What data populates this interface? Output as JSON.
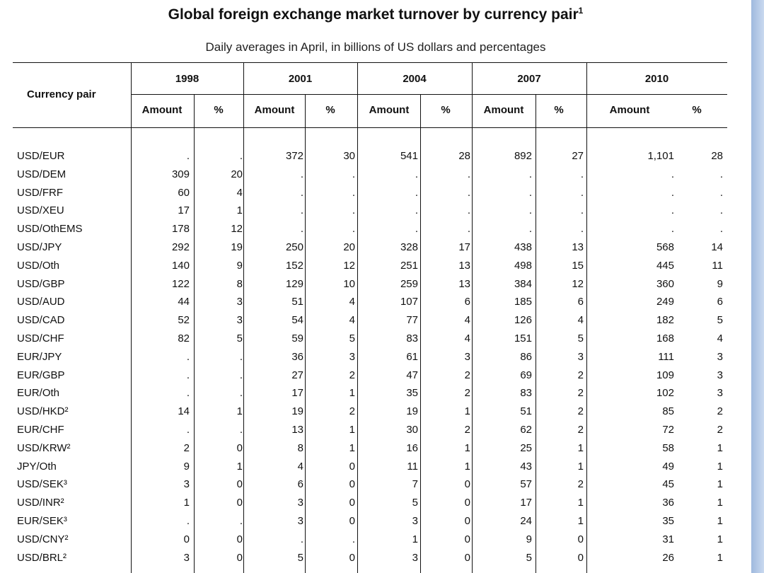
{
  "title": "Global foreign exchange market turnover by currency pair",
  "title_note": "1",
  "subtitle": "Daily averages in April, in billions of US dollars and percentages",
  "header": {
    "row_label": "Currency pair",
    "years": [
      "1998",
      "2001",
      "2004",
      "2007",
      "2010"
    ],
    "amount_label": "Amount",
    "pct_label": "%"
  },
  "rows": [
    {
      "pair": "USD/EUR",
      "v": [
        ".",
        ".",
        "372",
        "30",
        "541",
        "28",
        "892",
        "27",
        "1,101",
        "28"
      ]
    },
    {
      "pair": "USD/DEM",
      "v": [
        "309",
        "20",
        ".",
        ".",
        ".",
        ".",
        ".",
        ".",
        ".",
        "."
      ]
    },
    {
      "pair": "USD/FRF",
      "v": [
        "60",
        "4",
        ".",
        ".",
        ".",
        ".",
        ".",
        ".",
        ".",
        "."
      ]
    },
    {
      "pair": "USD/XEU",
      "v": [
        "17",
        "1",
        ".",
        ".",
        ".",
        ".",
        ".",
        ".",
        ".",
        "."
      ]
    },
    {
      "pair": "USD/OthEMS",
      "v": [
        "178",
        "12",
        ".",
        ".",
        ".",
        ".",
        ".",
        ".",
        ".",
        "."
      ]
    },
    {
      "pair": "USD/JPY",
      "v": [
        "292",
        "19",
        "250",
        "20",
        "328",
        "17",
        "438",
        "13",
        "568",
        "14"
      ]
    },
    {
      "pair": "USD/Oth",
      "v": [
        "140",
        "9",
        "152",
        "12",
        "251",
        "13",
        "498",
        "15",
        "445",
        "11"
      ]
    },
    {
      "pair": "USD/GBP",
      "v": [
        "122",
        "8",
        "129",
        "10",
        "259",
        "13",
        "384",
        "12",
        "360",
        "9"
      ]
    },
    {
      "pair": "USD/AUD",
      "v": [
        "44",
        "3",
        "51",
        "4",
        "107",
        "6",
        "185",
        "6",
        "249",
        "6"
      ]
    },
    {
      "pair": "USD/CAD",
      "v": [
        "52",
        "3",
        "54",
        "4",
        "77",
        "4",
        "126",
        "4",
        "182",
        "5"
      ]
    },
    {
      "pair": "USD/CHF",
      "v": [
        "82",
        "5",
        "59",
        "5",
        "83",
        "4",
        "151",
        "5",
        "168",
        "4"
      ]
    },
    {
      "pair": "EUR/JPY",
      "v": [
        ".",
        ".",
        "36",
        "3",
        "61",
        "3",
        "86",
        "3",
        "111",
        "3"
      ]
    },
    {
      "pair": "EUR/GBP",
      "v": [
        ".",
        ".",
        "27",
        "2",
        "47",
        "2",
        "69",
        "2",
        "109",
        "3"
      ]
    },
    {
      "pair": "EUR/Oth",
      "v": [
        ".",
        ".",
        "17",
        "1",
        "35",
        "2",
        "83",
        "2",
        "102",
        "3"
      ]
    },
    {
      "pair": "USD/HKD²",
      "v": [
        "14",
        "1",
        "19",
        "2",
        "19",
        "1",
        "51",
        "2",
        "85",
        "2"
      ]
    },
    {
      "pair": "EUR/CHF",
      "v": [
        ".",
        ".",
        "13",
        "1",
        "30",
        "2",
        "62",
        "2",
        "72",
        "2"
      ]
    },
    {
      "pair": "USD/KRW²",
      "v": [
        "2",
        "0",
        "8",
        "1",
        "16",
        "1",
        "25",
        "1",
        "58",
        "1"
      ]
    },
    {
      "pair": "JPY/Oth",
      "v": [
        "9",
        "1",
        "4",
        "0",
        "11",
        "1",
        "43",
        "1",
        "49",
        "1"
      ]
    },
    {
      "pair": "USD/SEK³",
      "v": [
        "3",
        "0",
        "6",
        "0",
        "7",
        "0",
        "57",
        "2",
        "45",
        "1"
      ]
    },
    {
      "pair": "USD/INR²",
      "v": [
        "1",
        "0",
        "3",
        "0",
        "5",
        "0",
        "17",
        "1",
        "36",
        "1"
      ]
    },
    {
      "pair": "EUR/SEK³",
      "v": [
        ".",
        ".",
        "3",
        "0",
        "3",
        "0",
        "24",
        "1",
        "35",
        "1"
      ]
    },
    {
      "pair": "USD/CNY²",
      "v": [
        "0",
        "0",
        ".",
        ".",
        "1",
        "0",
        "9",
        "0",
        "31",
        "1"
      ]
    },
    {
      "pair": "USD/BRL²",
      "v": [
        "3",
        "0",
        "5",
        "0",
        "3",
        "0",
        "5",
        "0",
        "26",
        "1"
      ]
    }
  ]
}
